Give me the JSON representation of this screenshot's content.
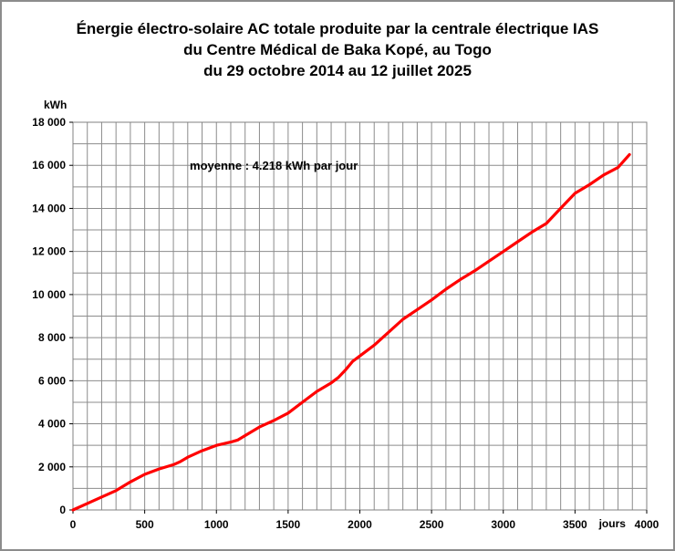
{
  "chart_data": {
    "type": "line",
    "title_lines": [
      "Énergie électro-solaire AC totale produite par la centrale électrique IAS",
      "du Centre Médical de Baka Kopé, au Togo",
      "du 29 octobre 2014 au 12 juillet 2025"
    ],
    "xlabel": "jours",
    "ylabel": "kWh",
    "xlim": [
      0,
      4000
    ],
    "ylim": [
      0,
      18000
    ],
    "x_ticks": [
      0,
      500,
      1000,
      1500,
      2000,
      2500,
      3000,
      3500,
      4000
    ],
    "x_tick_labels": [
      "0",
      "500",
      "1000",
      "1500",
      "2000",
      "2500",
      "3000",
      "3500",
      "4000"
    ],
    "y_ticks": [
      0,
      2000,
      4000,
      6000,
      8000,
      10000,
      12000,
      14000,
      16000,
      18000
    ],
    "y_tick_labels": [
      "0",
      "2 000",
      "4 000",
      "6 000",
      "8 000",
      "10 000",
      "12 000",
      "14 000",
      "16 000",
      "18 000"
    ],
    "grid": true,
    "annotation": "moyenne :  4.218 kWh par jour",
    "series": [
      {
        "color": "#ff0000",
        "x": [
          0,
          100,
          200,
          300,
          400,
          500,
          600,
          700,
          750,
          800,
          900,
          1000,
          1100,
          1150,
          1200,
          1300,
          1400,
          1500,
          1600,
          1700,
          1800,
          1850,
          1900,
          1950,
          2000,
          2100,
          2200,
          2300,
          2400,
          2500,
          2600,
          2700,
          2800,
          2900,
          3000,
          3100,
          3200,
          3300,
          3400,
          3500,
          3600,
          3700,
          3800,
          3880
        ],
        "y": [
          0,
          300,
          600,
          900,
          1300,
          1650,
          1900,
          2100,
          2250,
          2450,
          2750,
          3000,
          3150,
          3250,
          3450,
          3850,
          4150,
          4500,
          5000,
          5500,
          5900,
          6150,
          6500,
          6900,
          7150,
          7650,
          8250,
          8850,
          9300,
          9750,
          10250,
          10700,
          11100,
          11550,
          12000,
          12450,
          12900,
          13300,
          14000,
          14700,
          15100,
          15550,
          15900,
          16500
        ]
      }
    ]
  }
}
